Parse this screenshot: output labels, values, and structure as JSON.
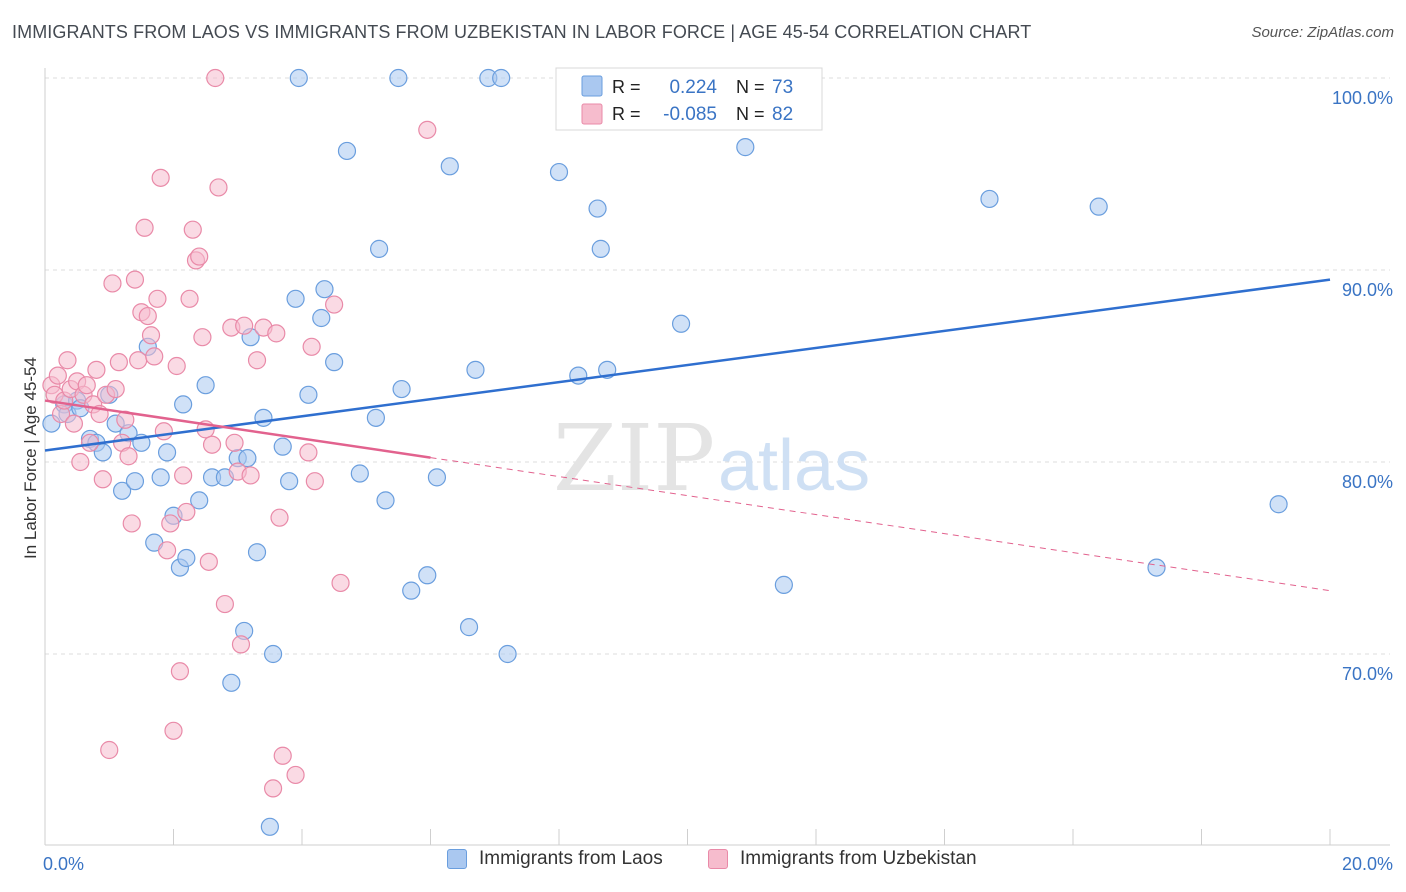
{
  "title": "IMMIGRANTS FROM LAOS VS IMMIGRANTS FROM UZBEKISTAN IN LABOR FORCE | AGE 45-54 CORRELATION CHART",
  "source": "Source: ZipAtlas.com",
  "watermark": {
    "zip": "ZIP",
    "atlas": "atlas"
  },
  "colors": {
    "blue_fill": "#aac8f0",
    "blue_stroke": "#6a9ede",
    "blue_line": "#2f6fcf",
    "pink_fill": "#f6bccd",
    "pink_stroke": "#e98aa8",
    "pink_line": "#e2628e",
    "tick_text": "#3a74c4",
    "grid": "#dddddd"
  },
  "chart_data": {
    "type": "scatter",
    "xlabel": "",
    "ylabel": "In Labor Force | Age 45-54",
    "xlim": [
      0,
      20
    ],
    "ylim": [
      60,
      101
    ],
    "x_tick_labels": [
      "0.0%",
      "20.0%"
    ],
    "y_ticks": [
      {
        "value": 100,
        "label": "100.0%"
      },
      {
        "value": 90,
        "label": "90.0%"
      },
      {
        "value": 80,
        "label": "80.0%"
      },
      {
        "value": 70,
        "label": "70.0%"
      }
    ],
    "series": [
      {
        "name": "Immigrants from Laos",
        "color": "blue",
        "R": "0.224",
        "N": "73",
        "trend": {
          "x0": 0,
          "y0": 80.6,
          "x1": 20,
          "y1": 89.5,
          "dashed_from": null
        },
        "points": [
          [
            0.1,
            82.0
          ],
          [
            0.3,
            83.0
          ],
          [
            0.35,
            82.5
          ],
          [
            0.5,
            83.2
          ],
          [
            0.55,
            82.8
          ],
          [
            0.7,
            81.2
          ],
          [
            0.8,
            81.0
          ],
          [
            0.9,
            80.5
          ],
          [
            1.0,
            83.5
          ],
          [
            1.1,
            82.0
          ],
          [
            1.2,
            78.5
          ],
          [
            1.3,
            81.5
          ],
          [
            1.4,
            79.0
          ],
          [
            1.5,
            81.0
          ],
          [
            1.6,
            86.0
          ],
          [
            1.7,
            75.8
          ],
          [
            1.8,
            79.2
          ],
          [
            1.9,
            80.5
          ],
          [
            2.0,
            77.2
          ],
          [
            2.1,
            74.5
          ],
          [
            2.15,
            83.0
          ],
          [
            2.2,
            75.0
          ],
          [
            2.4,
            78.0
          ],
          [
            2.5,
            84.0
          ],
          [
            2.6,
            79.2
          ],
          [
            2.8,
            79.2
          ],
          [
            2.9,
            68.5
          ],
          [
            3.0,
            80.2
          ],
          [
            3.1,
            71.2
          ],
          [
            3.15,
            80.2
          ],
          [
            3.2,
            86.5
          ],
          [
            3.3,
            75.3
          ],
          [
            3.4,
            82.3
          ],
          [
            3.5,
            61.0
          ],
          [
            3.55,
            70.0
          ],
          [
            3.7,
            80.8
          ],
          [
            3.8,
            79.0
          ],
          [
            3.9,
            88.5
          ],
          [
            3.95,
            100.0
          ],
          [
            4.1,
            83.5
          ],
          [
            4.3,
            87.5
          ],
          [
            4.35,
            89.0
          ],
          [
            4.5,
            85.2
          ],
          [
            4.7,
            96.2
          ],
          [
            4.9,
            79.4
          ],
          [
            5.15,
            82.3
          ],
          [
            5.2,
            91.1
          ],
          [
            5.3,
            78.0
          ],
          [
            5.5,
            100.0
          ],
          [
            5.55,
            83.8
          ],
          [
            5.7,
            73.3
          ],
          [
            5.95,
            74.1
          ],
          [
            6.1,
            79.2
          ],
          [
            6.3,
            95.4
          ],
          [
            6.6,
            71.4
          ],
          [
            6.7,
            84.8
          ],
          [
            6.9,
            100.0
          ],
          [
            7.1,
            100.0
          ],
          [
            7.2,
            70.0
          ],
          [
            8.0,
            95.1
          ],
          [
            8.3,
            84.5
          ],
          [
            8.6,
            93.2
          ],
          [
            8.65,
            91.1
          ],
          [
            8.75,
            84.8
          ],
          [
            9.9,
            87.2
          ],
          [
            10.9,
            96.4
          ],
          [
            11.5,
            73.6
          ],
          [
            14.7,
            93.7
          ],
          [
            16.4,
            93.3
          ],
          [
            17.3,
            74.5
          ],
          [
            19.2,
            77.8
          ]
        ]
      },
      {
        "name": "Immigrants from Uzbekistan",
        "color": "pink",
        "R": "-0.085",
        "N": "82",
        "trend": {
          "x0": 0,
          "y0": 83.2,
          "x1": 20,
          "y1": 73.3,
          "dashed_from": 6.0
        },
        "points": [
          [
            0.1,
            84.0
          ],
          [
            0.15,
            83.5
          ],
          [
            0.2,
            84.5
          ],
          [
            0.25,
            82.5
          ],
          [
            0.3,
            83.2
          ],
          [
            0.35,
            85.3
          ],
          [
            0.4,
            83.8
          ],
          [
            0.45,
            82.0
          ],
          [
            0.5,
            84.2
          ],
          [
            0.55,
            80.0
          ],
          [
            0.6,
            83.5
          ],
          [
            0.65,
            84.0
          ],
          [
            0.7,
            81.0
          ],
          [
            0.75,
            83.0
          ],
          [
            0.8,
            84.8
          ],
          [
            0.85,
            82.5
          ],
          [
            0.9,
            79.1
          ],
          [
            0.95,
            83.5
          ],
          [
            1.0,
            65.0
          ],
          [
            1.05,
            89.3
          ],
          [
            1.1,
            83.8
          ],
          [
            1.15,
            85.2
          ],
          [
            1.2,
            81.0
          ],
          [
            1.25,
            82.2
          ],
          [
            1.3,
            80.3
          ],
          [
            1.35,
            76.8
          ],
          [
            1.4,
            89.5
          ],
          [
            1.45,
            85.3
          ],
          [
            1.5,
            87.8
          ],
          [
            1.55,
            92.2
          ],
          [
            1.6,
            87.6
          ],
          [
            1.65,
            86.6
          ],
          [
            1.7,
            85.5
          ],
          [
            1.75,
            88.5
          ],
          [
            1.8,
            94.8
          ],
          [
            1.85,
            81.6
          ],
          [
            1.9,
            75.4
          ],
          [
            1.95,
            76.8
          ],
          [
            2.0,
            66.0
          ],
          [
            2.05,
            85.0
          ],
          [
            2.1,
            69.1
          ],
          [
            2.15,
            79.3
          ],
          [
            2.2,
            77.4
          ],
          [
            2.25,
            88.5
          ],
          [
            2.3,
            92.1
          ],
          [
            2.35,
            90.5
          ],
          [
            2.4,
            90.7
          ],
          [
            2.45,
            86.5
          ],
          [
            2.5,
            81.7
          ],
          [
            2.55,
            74.8
          ],
          [
            2.6,
            80.9
          ],
          [
            2.65,
            100.0
          ],
          [
            2.7,
            94.3
          ],
          [
            2.8,
            72.6
          ],
          [
            2.9,
            87.0
          ],
          [
            2.95,
            81.0
          ],
          [
            3.0,
            79.5
          ],
          [
            3.05,
            70.5
          ],
          [
            3.1,
            87.1
          ],
          [
            3.2,
            79.3
          ],
          [
            3.3,
            85.3
          ],
          [
            3.4,
            87.0
          ],
          [
            3.55,
            63.0
          ],
          [
            3.6,
            86.7
          ],
          [
            3.65,
            77.1
          ],
          [
            3.7,
            64.7
          ],
          [
            3.9,
            63.7
          ],
          [
            4.1,
            80.5
          ],
          [
            4.15,
            86.0
          ],
          [
            4.2,
            79.0
          ],
          [
            4.5,
            88.2
          ],
          [
            4.6,
            73.7
          ],
          [
            5.95,
            97.3
          ]
        ]
      }
    ]
  },
  "stats_legend": {
    "blue": {
      "r_label": "R =",
      "r_value": "0.224",
      "n_label": "N =",
      "n_value": "73"
    },
    "pink": {
      "r_label": "R =",
      "r_value": "-0.085",
      "n_label": "N =",
      "n_value": "82"
    }
  },
  "bottom_legend": [
    "Immigrants from Laos",
    "Immigrants from Uzbekistan"
  ]
}
